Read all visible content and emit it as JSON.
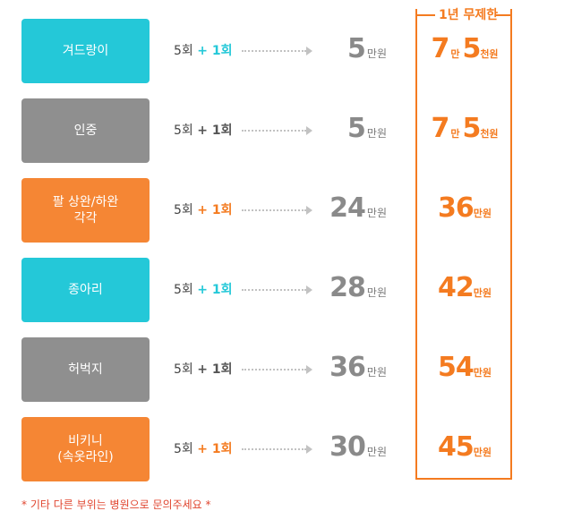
{
  "header": {
    "title": "1년 무제한"
  },
  "colors": {
    "teal": "#24c8d8",
    "gray": "#8f8f8f",
    "orange": "#f58634",
    "accent": "#f47b20"
  },
  "rows": [
    {
      "label": "겨드랑이",
      "color": "teal",
      "base": "5회",
      "plus": "+ 1회",
      "plus_color": "#24c8d8",
      "price": "5",
      "price_unit": "만원",
      "unlimited": {
        "a": "7",
        "a_unit": "만",
        "b": "5",
        "b_unit": "천원"
      }
    },
    {
      "label": "인중",
      "color": "gray",
      "base": "5회",
      "plus": "+ 1회",
      "plus_color": "#555555",
      "price": "5",
      "price_unit": "만원",
      "unlimited": {
        "a": "7",
        "a_unit": "만",
        "b": "5",
        "b_unit": "천원"
      }
    },
    {
      "label": "팔 상완/하완\n각각",
      "color": "orange",
      "base": "5회",
      "plus": "+ 1회",
      "plus_color": "#f47b20",
      "price": "24",
      "price_unit": "만원",
      "unlimited": {
        "a": "36",
        "a_unit": "만원",
        "b": "",
        "b_unit": ""
      }
    },
    {
      "label": "종아리",
      "color": "teal",
      "base": "5회",
      "plus": "+ 1회",
      "plus_color": "#24c8d8",
      "price": "28",
      "price_unit": "만원",
      "unlimited": {
        "a": "42",
        "a_unit": "만원",
        "b": "",
        "b_unit": ""
      }
    },
    {
      "label": "허벅지",
      "color": "gray",
      "base": "5회",
      "plus": "+ 1회",
      "plus_color": "#555555",
      "price": "36",
      "price_unit": "만원",
      "unlimited": {
        "a": "54",
        "a_unit": "만원",
        "b": "",
        "b_unit": ""
      }
    },
    {
      "label": "비키니\n(속옷라인)",
      "color": "orange",
      "base": "5회",
      "plus": "+ 1회",
      "plus_color": "#f47b20",
      "price": "30",
      "price_unit": "만원",
      "unlimited": {
        "a": "45",
        "a_unit": "만원",
        "b": "",
        "b_unit": ""
      }
    }
  ],
  "footnote": "* 기타 다른 부위는 병원으로 문의주세요 *"
}
